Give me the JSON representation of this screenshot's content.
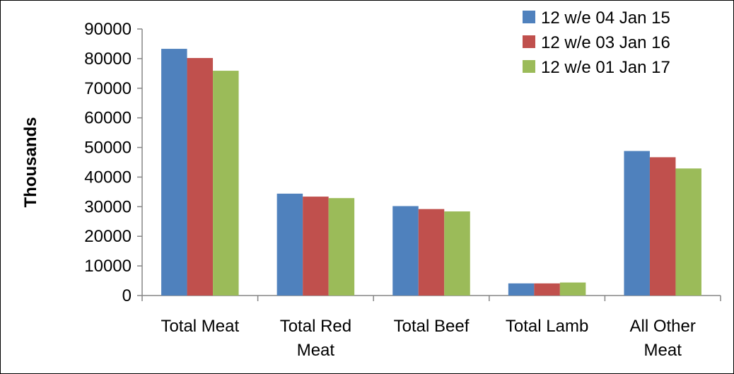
{
  "chart_data": {
    "type": "bar",
    "title": "",
    "xlabel": "",
    "ylabel": "Thousands",
    "ylim": [
      0,
      90000
    ],
    "yticks": [
      0,
      10000,
      20000,
      30000,
      40000,
      50000,
      60000,
      70000,
      80000,
      90000
    ],
    "grid": false,
    "legend_position": "top-right",
    "categories": [
      [
        "Total Meat"
      ],
      [
        "Total Red",
        "Meat"
      ],
      [
        "Total Beef"
      ],
      [
        "Total Lamb"
      ],
      [
        "All Other",
        "Meat"
      ]
    ],
    "series": [
      {
        "name": "12 w/e 04 Jan 15",
        "color": "#4F81BD",
        "values": [
          83300,
          34400,
          30200,
          4100,
          48800
        ]
      },
      {
        "name": "12 w/e 03 Jan 16",
        "color": "#C0504D",
        "values": [
          80200,
          33400,
          29200,
          4100,
          46700
        ]
      },
      {
        "name": "12 w/e 01 Jan 17",
        "color": "#9BBB59",
        "values": [
          75900,
          32900,
          28400,
          4400,
          42900
        ]
      }
    ]
  }
}
